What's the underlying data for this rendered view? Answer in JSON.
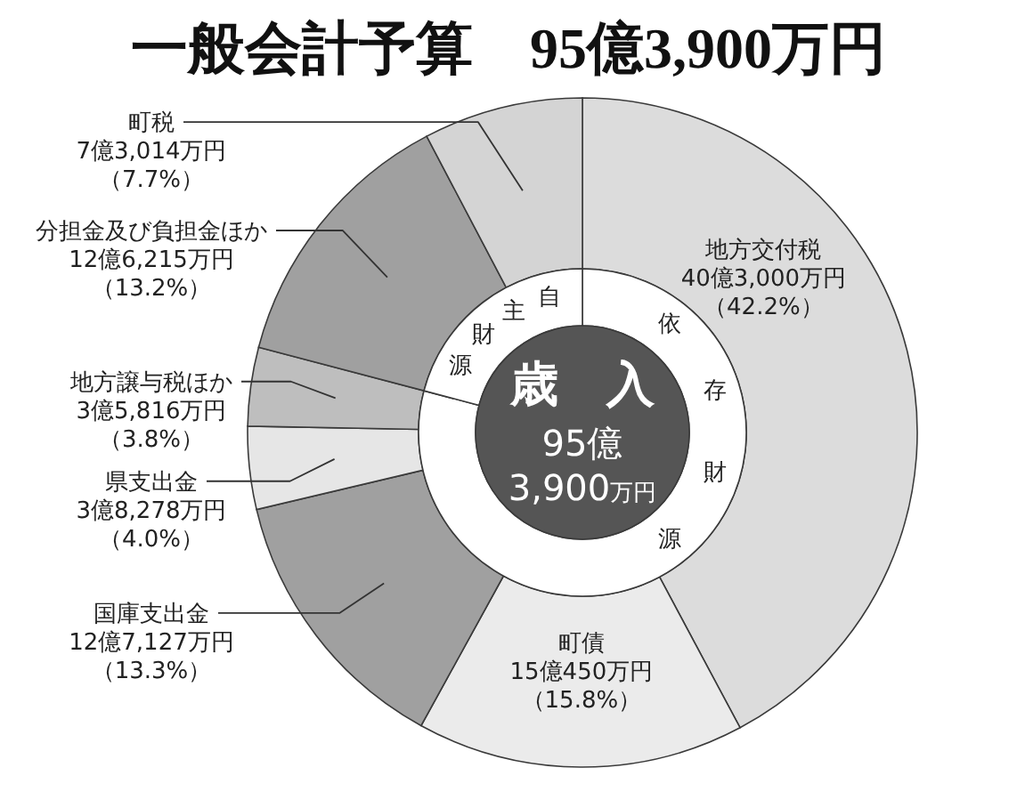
{
  "chart_data": [
    {
      "type": "donut",
      "title": "一般会計予算　95億3,900万円",
      "categories": [
        "地方交付税",
        "町債",
        "国庫支出金",
        "県支出金",
        "地方譲与税ほか",
        "分担金及び負担金ほか",
        "町税"
      ],
      "values": [
        42.2,
        15.8,
        13.3,
        4.0,
        3.8,
        13.2,
        7.7
      ],
      "colors": [
        "#dcdcdc",
        "#ebebeb",
        "#a0a0a0",
        "#e6e6e6",
        "#bebebe",
        "#a0a0a0",
        "#d4d4d4"
      ],
      "value_labels": [
        "40億3,000万円（42.2%）",
        "15億450万円（15.8%）",
        "12億7,127万円（13.3%）",
        "3億8,278万円（4.0%）",
        "3億5,816万円（3.8%）",
        "12億6,215万円（13.2%）",
        "7億3,014万円（7.7%）"
      ]
    },
    {
      "type": "donut",
      "title": "歳　入",
      "annotations": [
        "95億",
        "3,900万円"
      ],
      "categories": [
        "依存財源",
        "自主財源"
      ],
      "values": [
        79.1,
        20.9
      ],
      "colors": [
        "#ffffff",
        "#ffffff"
      ]
    }
  ]
}
